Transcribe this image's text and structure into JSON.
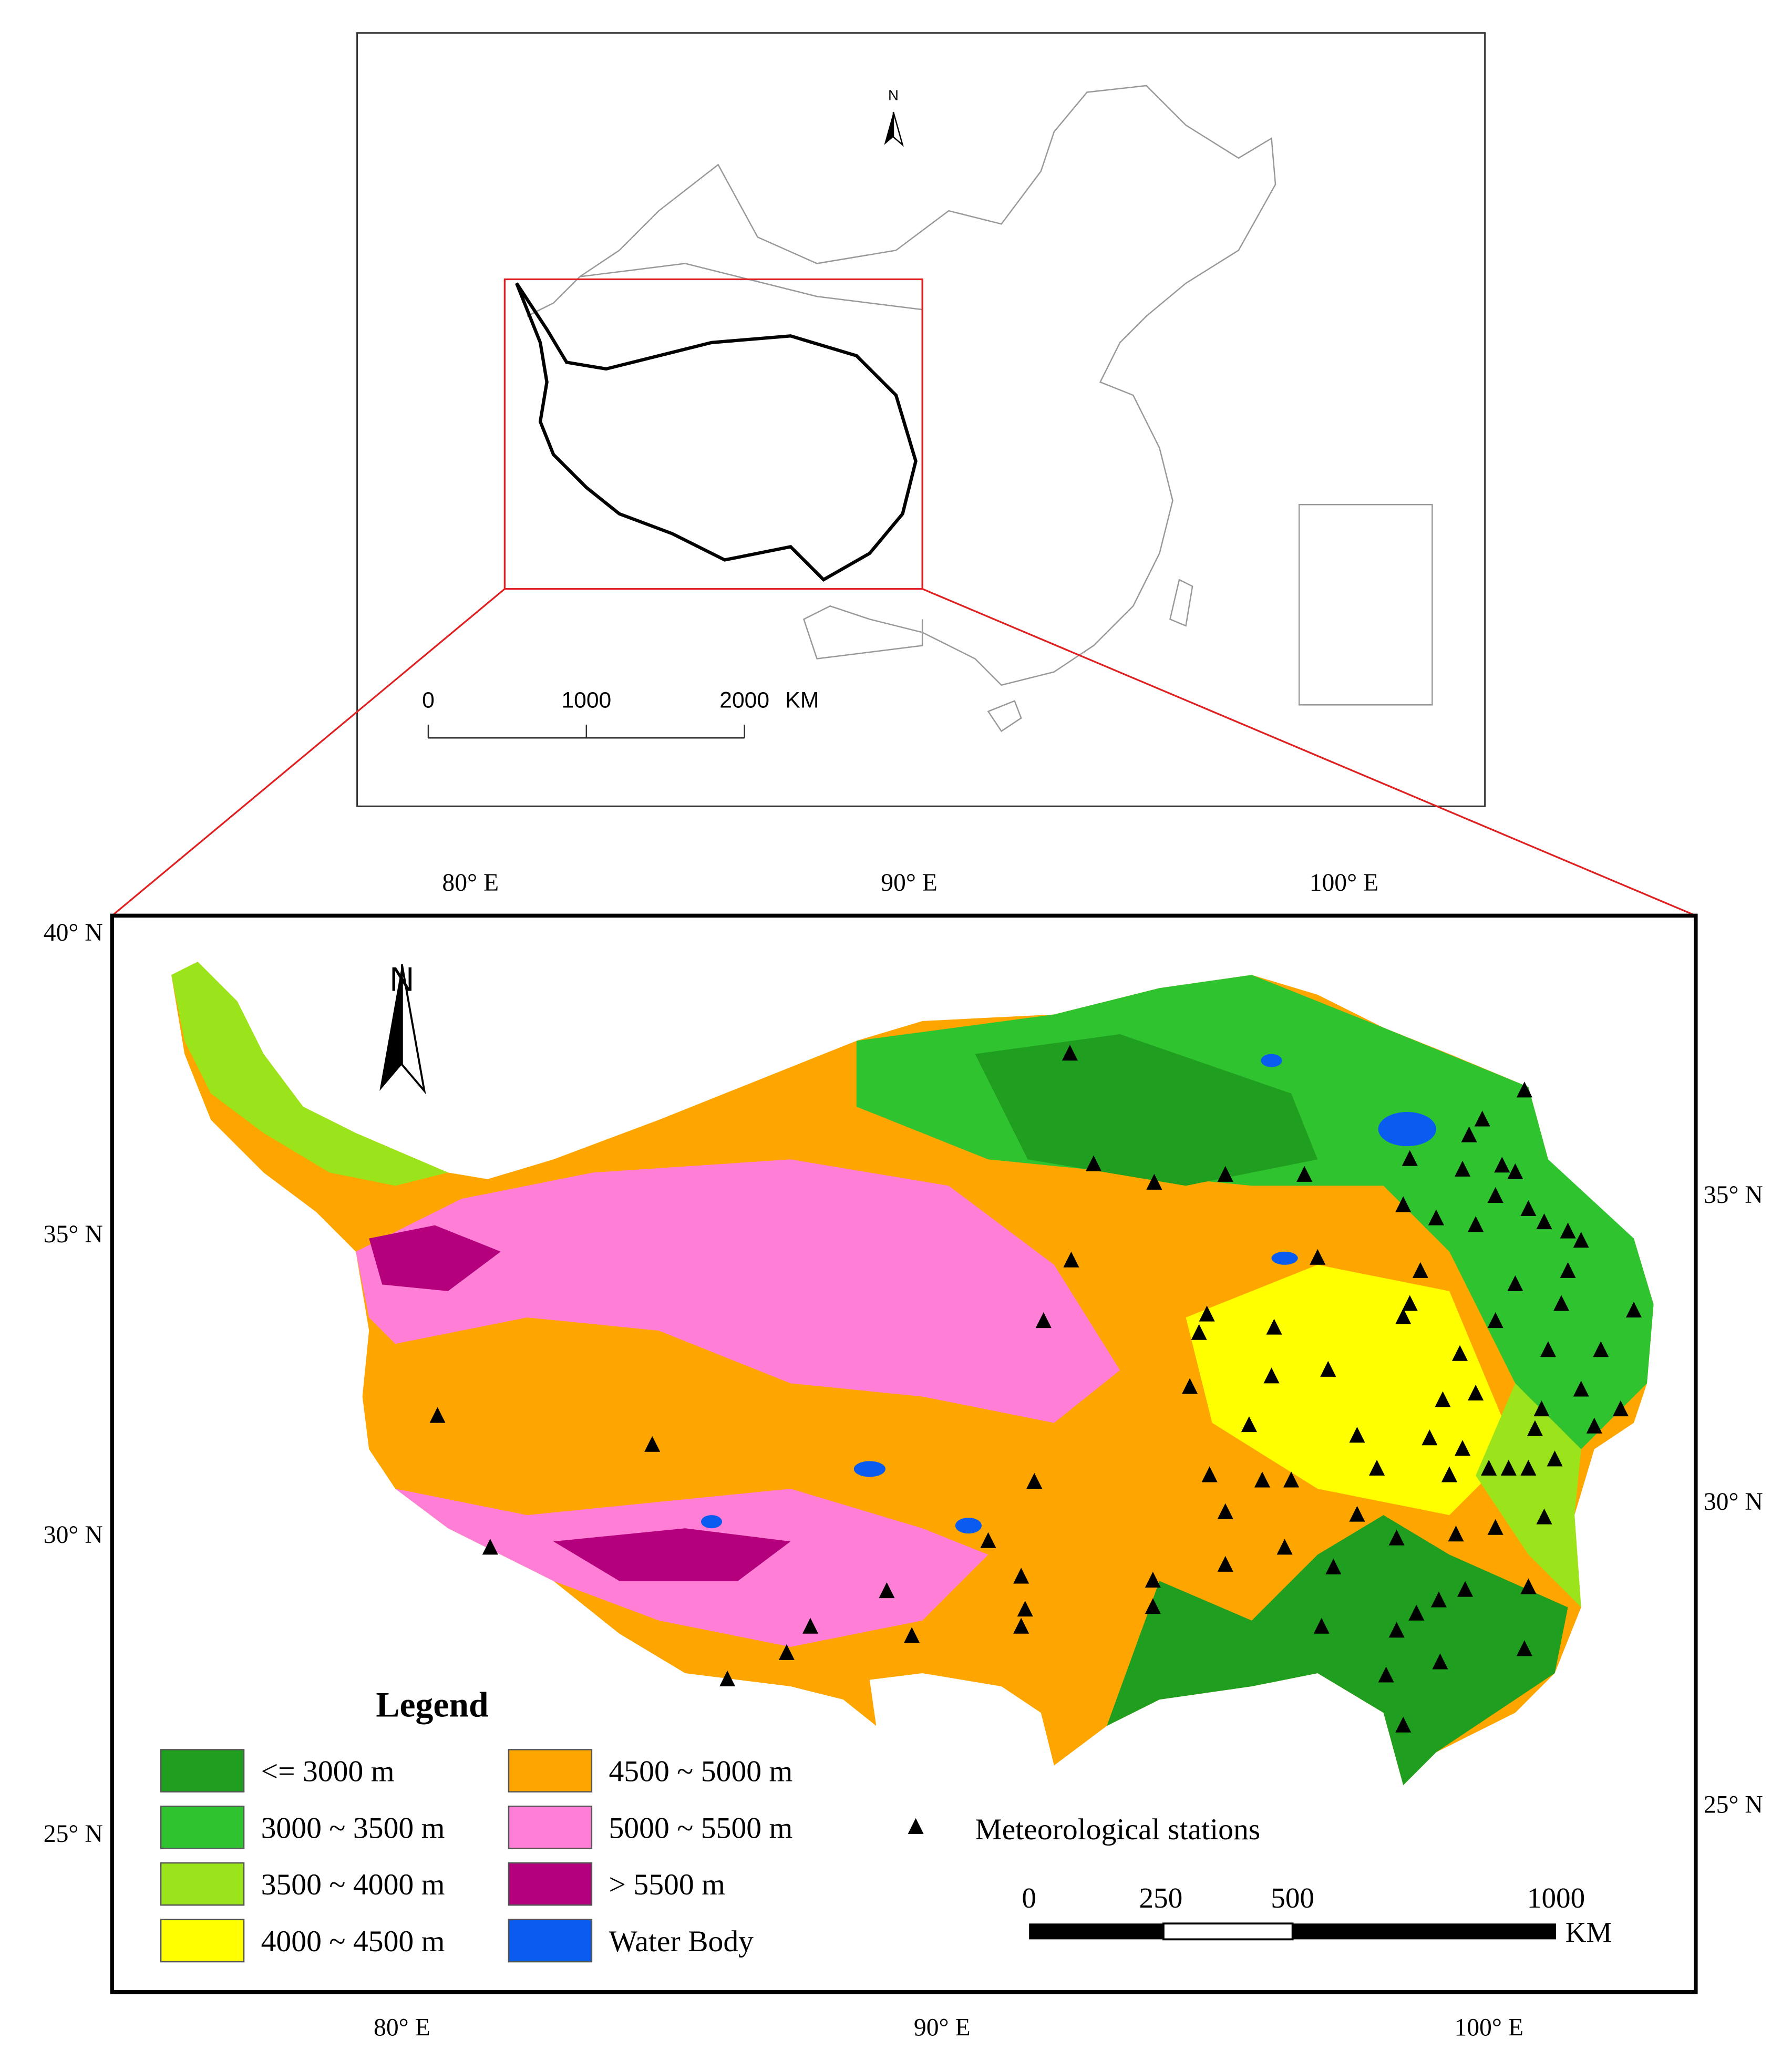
{
  "inset_map": {
    "north_label": "N",
    "scale_bar": {
      "labels": [
        "0",
        "1000",
        "2000"
      ],
      "unit": "KM"
    }
  },
  "main_map": {
    "north_label": "N",
    "top_axis_labels": [
      "80° E",
      "90° E",
      "100° E"
    ],
    "bottom_axis_labels": [
      "80° E",
      "90° E",
      "100° E"
    ],
    "left_axis_labels": [
      "40° N",
      "35° N",
      "30° N",
      "25° N"
    ],
    "right_axis_labels": [
      "35° N",
      "30° N",
      "25° N"
    ],
    "legend": {
      "title": "Legend",
      "items": [
        {
          "label": "<= 3000 m",
          "color": "#1f9e1f"
        },
        {
          "label": "3000 ~ 3500 m",
          "color": "#2fc42f"
        },
        {
          "label": "3500 ~ 4000 m",
          "color": "#9be31a"
        },
        {
          "label": "4000 ~ 4500 m",
          "color": "#ffff00"
        },
        {
          "label": "4500 ~ 5000 m",
          "color": "#ffa500"
        },
        {
          "label": "5000 ~ 5500 m",
          "color": "#ff7fd7"
        },
        {
          "label": "> 5500 m",
          "color": "#b4007d"
        },
        {
          "label": "Water Body",
          "color": "#0a5bf0"
        }
      ]
    },
    "stations_label": "Meteorological stations",
    "scale_bar": {
      "labels": [
        "0",
        "250",
        "500",
        "1000"
      ],
      "unit": "KM"
    }
  }
}
